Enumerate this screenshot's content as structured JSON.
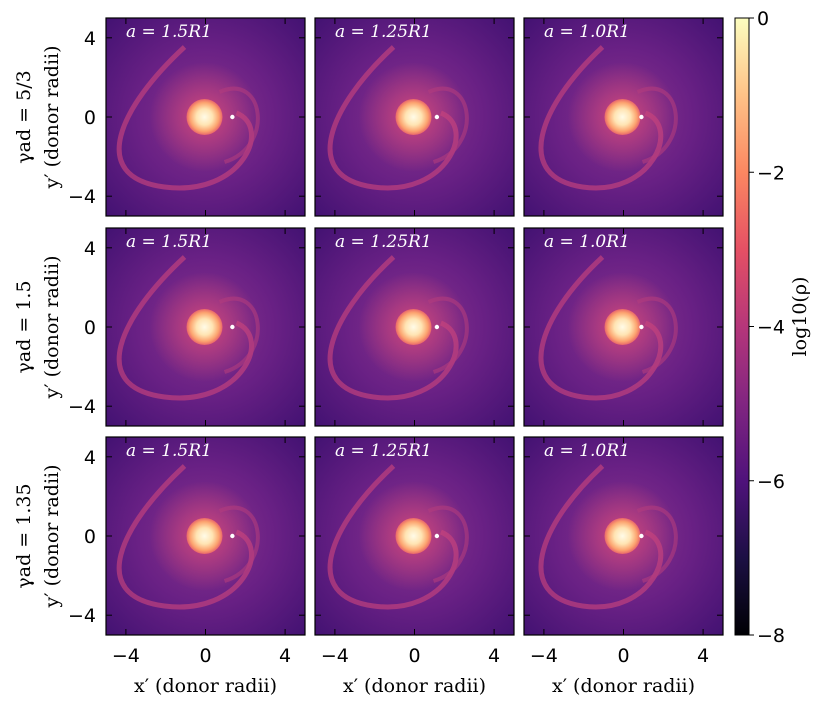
{
  "figure": {
    "colorbar": {
      "label": "log10(ρ)",
      "ticks": [
        "0",
        "−2",
        "−4",
        "−6",
        "−8"
      ],
      "tick_values": [
        0,
        -2,
        -4,
        -6,
        -8
      ],
      "range": [
        -8,
        0
      ],
      "colormap": "magma"
    }
  },
  "chart_data": {
    "type": "heatmap",
    "xlabel": "x′ (donor radii)",
    "ylabel": "y′ (donor radii)",
    "xticks": [
      "−4",
      "0",
      "4"
    ],
    "yticks": [
      "4",
      "0",
      "−4"
    ],
    "xlim": [
      -5,
      5
    ],
    "ylim": [
      -5,
      5
    ],
    "rows": [
      {
        "label": "γad = 5/3"
      },
      {
        "label": "γad = 1.5"
      },
      {
        "label": "γad = 1.35"
      }
    ],
    "panel_labels": [
      "a = 1.5R1",
      "a = 1.25R1",
      "a = 1.0R1"
    ],
    "panels": [
      {
        "row": 0,
        "col": 0,
        "label": "a = 1.5R1",
        "separation": 1.5
      },
      {
        "row": 0,
        "col": 1,
        "label": "a = 1.25R1",
        "separation": 1.25
      },
      {
        "row": 0,
        "col": 2,
        "label": "a = 1.0R1",
        "separation": 1.0
      },
      {
        "row": 1,
        "col": 0,
        "label": "a = 1.5R1",
        "separation": 1.5
      },
      {
        "row": 1,
        "col": 1,
        "label": "a = 1.25R1",
        "separation": 1.25
      },
      {
        "row": 1,
        "col": 2,
        "label": "a = 1.0R1",
        "separation": 1.0
      },
      {
        "row": 2,
        "col": 0,
        "label": "a = 1.5R1",
        "separation": 1.5
      },
      {
        "row": 2,
        "col": 1,
        "label": "a = 1.25R1",
        "separation": 1.25
      },
      {
        "row": 2,
        "col": 2,
        "label": "a = 1.0R1",
        "separation": 1.0
      }
    ]
  }
}
